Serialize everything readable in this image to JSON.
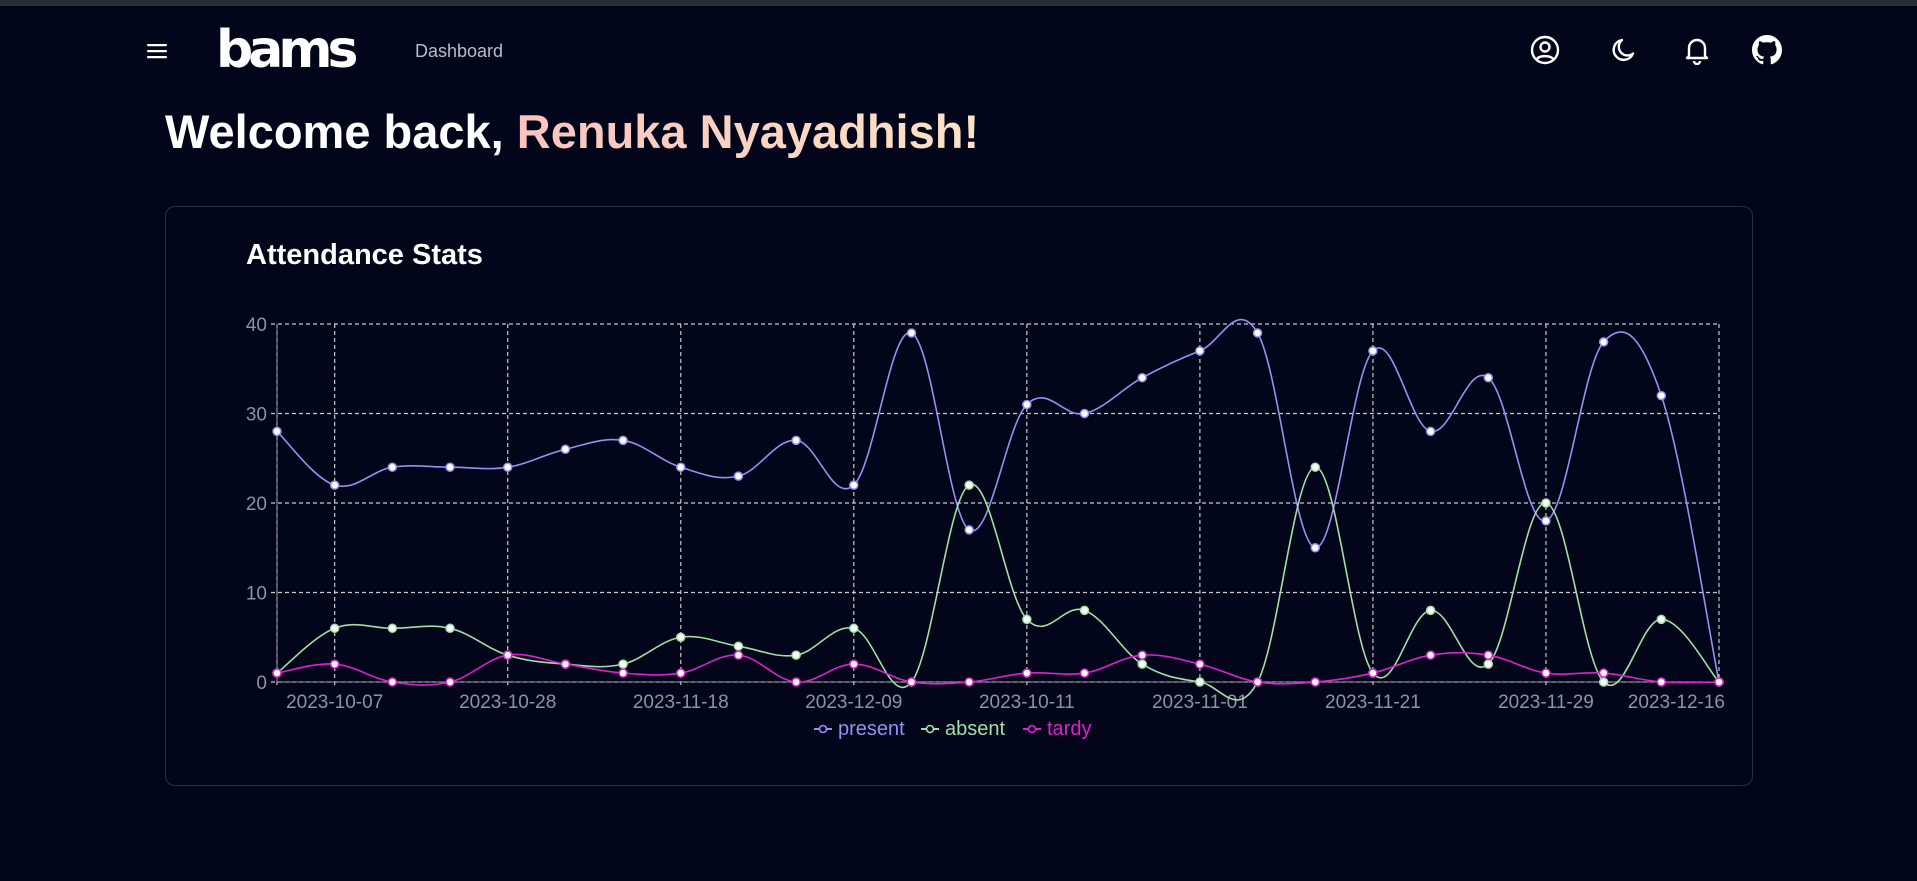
{
  "app": {
    "logo_text": "bams",
    "nav_link": "Dashboard"
  },
  "header": {
    "icons": [
      "menu-icon",
      "user-circle-icon",
      "moon-icon",
      "bell-icon",
      "github-icon"
    ]
  },
  "welcome": {
    "prefix": "Welcome back, ",
    "name": "Renuka Nyayadhish!"
  },
  "card": {
    "title": "Attendance Stats"
  },
  "colors": {
    "present": "#9a8ff0",
    "absent": "#9ee0a8",
    "tardy": "#e020d0",
    "grid": "#c9c9c9"
  },
  "chart_data": {
    "type": "line",
    "title": "Attendance Stats",
    "xlabel": "",
    "ylabel": "",
    "ylim": [
      0,
      40
    ],
    "y_ticks": [
      0,
      10,
      20,
      30,
      40
    ],
    "grid": true,
    "legend_position": "bottom",
    "x_tick_labels": [
      "2023-10-07",
      "2023-10-28",
      "2023-11-18",
      "2023-12-09",
      "2023-10-11",
      "2023-11-01",
      "2023-11-21",
      "2023-11-29",
      "2023-12-16"
    ],
    "series": [
      {
        "name": "present",
        "values": [
          28,
          22,
          24,
          24,
          24,
          26,
          27,
          24,
          23,
          27,
          22,
          39,
          17,
          31,
          30,
          34,
          37,
          39,
          15,
          37,
          28,
          34,
          18,
          38,
          32,
          0
        ]
      },
      {
        "name": "absent",
        "values": [
          1,
          6,
          6,
          6,
          3,
          2,
          2,
          5,
          4,
          3,
          6,
          0,
          22,
          7,
          8,
          2,
          0,
          0,
          24,
          1,
          8,
          2,
          20,
          0,
          7,
          0
        ]
      },
      {
        "name": "tardy",
        "values": [
          1,
          2,
          0,
          0,
          3,
          2,
          1,
          1,
          3,
          0,
          2,
          0,
          0,
          1,
          1,
          3,
          2,
          0,
          0,
          1,
          3,
          3,
          1,
          1,
          0,
          0
        ]
      }
    ]
  }
}
